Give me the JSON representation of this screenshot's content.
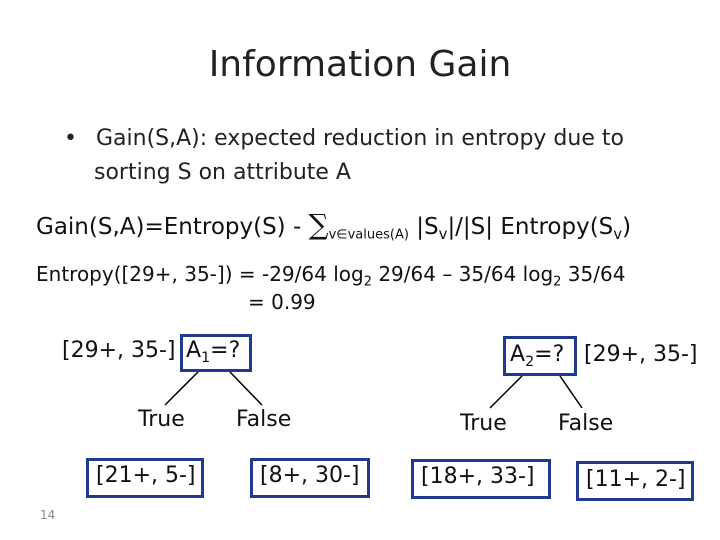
{
  "slide": {
    "title": "Information Gain",
    "bullet": {
      "marker": "•",
      "line1": "Gain(S,A): expected reduction in entropy due to",
      "line2": "sorting S on attribute A"
    },
    "gain_formula": {
      "lhs": "Gain(S,A)=Entropy(S) - ",
      "sigma": "∑",
      "sigma_sub": "v∈values(A)",
      "rhs_a": " |S",
      "rhs_sub1": "v",
      "rhs_b": "|/|S| Entropy(S",
      "rhs_sub2": "v",
      "rhs_c": ")"
    },
    "entropy_calc": {
      "part1": "Entropy([29+, 35-]) = -29/64 log",
      "sub1": "2",
      "part2": " 29/64 – 35/64 log",
      "sub2": "2",
      "part3": " 35/64",
      "line2": "= 0.99"
    },
    "tree_left": {
      "root_counts": "[29+, 35-]",
      "root_attr": "A",
      "root_attr_sub": "1",
      "root_attr_suffix": "=?",
      "branch_true": "True",
      "branch_false": "False",
      "leaf_true": "[21+, 5-]",
      "leaf_false": "[8+, 30-]"
    },
    "tree_right": {
      "root_attr": "A",
      "root_attr_sub": "2",
      "root_attr_suffix": "=?",
      "root_counts": "[29+, 35-]",
      "branch_true": "True",
      "branch_false": "False",
      "leaf_true": "[18+, 33-]",
      "leaf_false": "[11+, 2-]"
    },
    "slide_number": "14",
    "colors": {
      "box_border": "#1f3a93",
      "text": "#111111",
      "line": "#000000"
    }
  }
}
